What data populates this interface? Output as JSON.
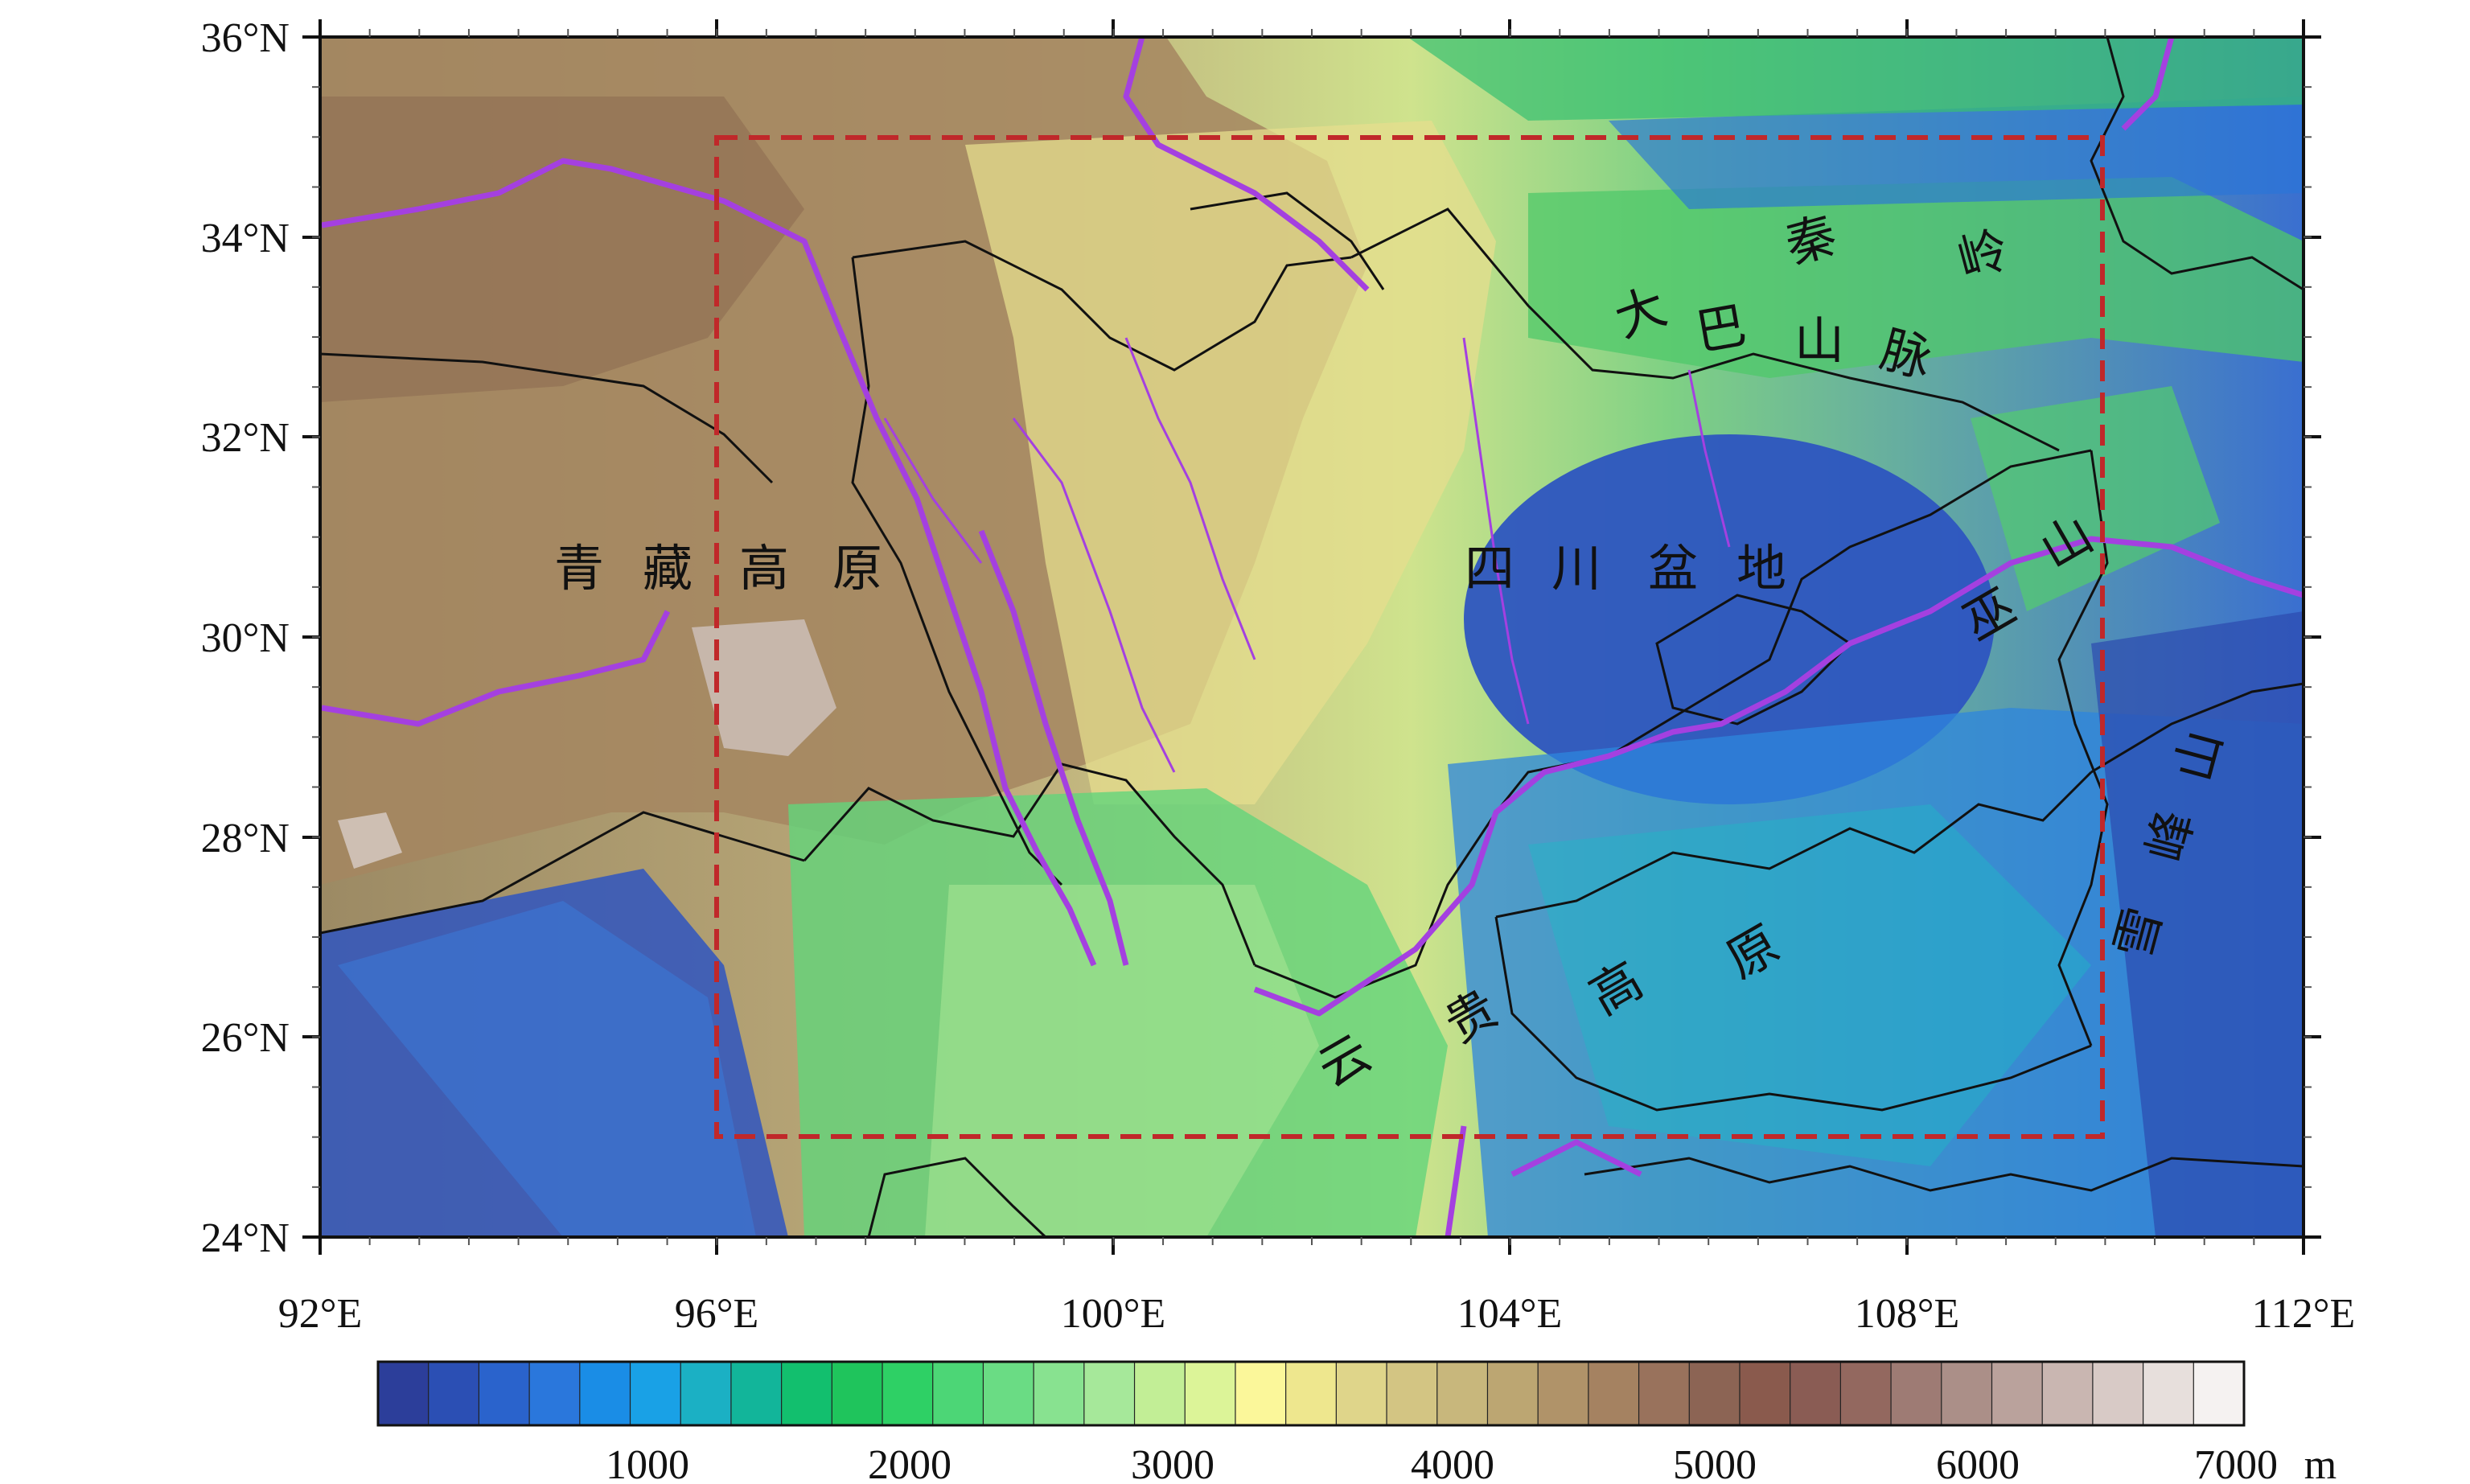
{
  "axes": {
    "x_ticks": [
      "92°E",
      "96°E",
      "100°E",
      "104°E",
      "108°E",
      "112°E"
    ],
    "y_ticks": [
      "36°N",
      "34°N",
      "32°N",
      "30°N",
      "28°N",
      "26°N",
      "24°N"
    ]
  },
  "colorbar": {
    "ticks": [
      "1000",
      "2000",
      "3000",
      "4000",
      "5000",
      "6000",
      "7000"
    ],
    "unit": "m",
    "colors": [
      "#2c3e9a",
      "#2b4fb4",
      "#2a63cc",
      "#2a77dc",
      "#1a8de6",
      "#19a1e6",
      "#1bb0c4",
      "#12b59a",
      "#12bf6e",
      "#1fc45c",
      "#2ed065",
      "#4cd676",
      "#6adc84",
      "#88e290",
      "#a6e89a",
      "#c2ee96",
      "#dcf498",
      "#fbf79a",
      "#eee78e",
      "#dfd58a",
      "#d3c583",
      "#c8b77c",
      "#bca672",
      "#b09369",
      "#a58261",
      "#99725c",
      "#8c6454",
      "#8a5a4d",
      "#8a5c54",
      "#93685f",
      "#9e7b74",
      "#ab8f88",
      "#baa29c",
      "#c9b6b1",
      "#d8cac6",
      "#e7dfdc",
      "#f5f2f1"
    ]
  },
  "regions": {
    "qinghai_tibet": [
      "青",
      "藏",
      "高",
      "原"
    ],
    "sichuan_basin": [
      "四",
      "川",
      "盆",
      "地"
    ],
    "yungui": [
      "云",
      "贵",
      "高",
      "原"
    ],
    "qinling": [
      "秦",
      "岭"
    ],
    "daba": [
      "大",
      "巴",
      "山",
      "脉"
    ],
    "wushan": [
      "巫",
      "山"
    ],
    "xuefeng": [
      "雪",
      "峰",
      "山"
    ]
  },
  "colors": {
    "box": "#c0282a",
    "river": "#a440e0",
    "border": "#111111"
  }
}
